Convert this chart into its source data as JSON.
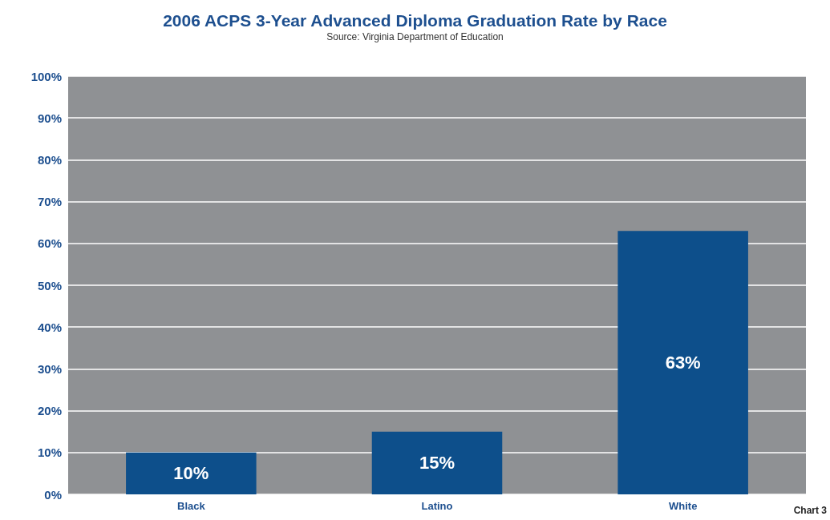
{
  "chart_data": {
    "type": "bar",
    "title": "2006 ACPS 3-Year Advanced Diploma Graduation Rate by Race",
    "subtitle": "Source: Virginia Department of Education",
    "annotations": [
      "Chart 3"
    ],
    "categories": [
      "Black",
      "Latino",
      "White"
    ],
    "values": [
      10,
      15,
      63
    ],
    "value_labels": [
      "10%",
      "15%",
      "63%"
    ],
    "color": "#0d4f8b",
    "ylim": [
      0,
      100
    ],
    "yticks": [
      {
        "value": 0,
        "label": "0%"
      },
      {
        "value": 10,
        "label": "10%"
      },
      {
        "value": 20,
        "label": "20%"
      },
      {
        "value": 30,
        "label": "30%"
      },
      {
        "value": 40,
        "label": "40%"
      },
      {
        "value": 50,
        "label": "50%"
      },
      {
        "value": 60,
        "label": "60%"
      },
      {
        "value": 70,
        "label": "70%"
      },
      {
        "value": 80,
        "label": "80%"
      },
      {
        "value": 90,
        "label": "90%"
      },
      {
        "value": 100,
        "label": "100%"
      }
    ],
    "grid": "y"
  }
}
